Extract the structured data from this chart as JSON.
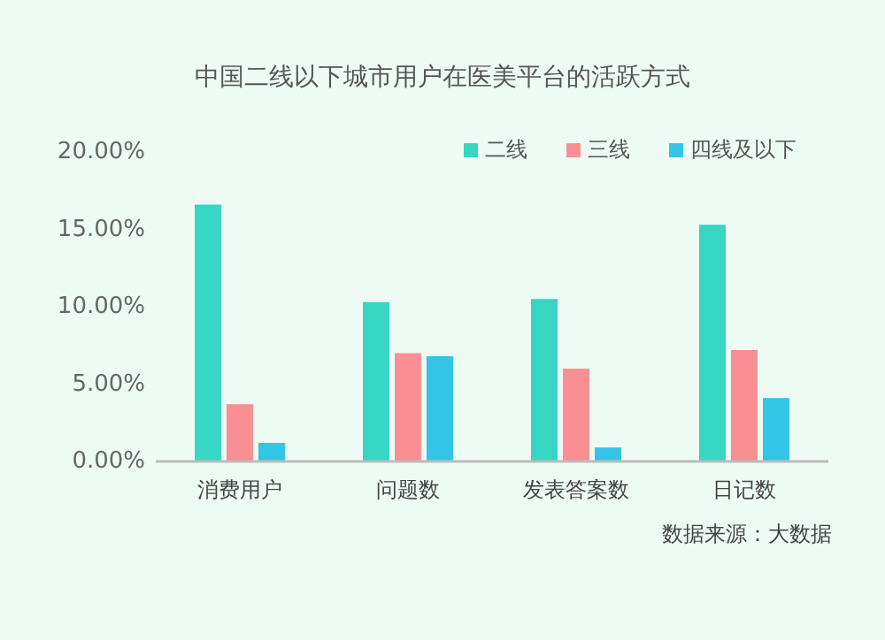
{
  "chart_data": {
    "type": "bar",
    "title": "中国二线以下城市用户在医美平台的活跃方式",
    "categories": [
      "消费用户",
      "问题数",
      "发表答案数",
      "日记数"
    ],
    "series": [
      {
        "name": "二线",
        "color": "#36d6c3",
        "values": [
          16.6,
          10.3,
          10.5,
          15.3
        ]
      },
      {
        "name": "三线",
        "color": "#f98f92",
        "values": [
          3.7,
          7.0,
          6.0,
          7.2
        ]
      },
      {
        "name": "四线及以下",
        "color": "#33c4e6",
        "values": [
          1.2,
          6.8,
          0.9,
          4.1
        ]
      }
    ],
    "ylim": [
      0,
      20
    ],
    "yticks": [
      {
        "value": 0,
        "label": "0.00%"
      },
      {
        "value": 5,
        "label": "5.00%"
      },
      {
        "value": 10,
        "label": "10.00%"
      },
      {
        "value": 15,
        "label": "15.00%"
      },
      {
        "value": 20,
        "label": "20.00%"
      }
    ],
    "grid": false,
    "legend": "top right",
    "annotations": [
      "数据来源：大数据"
    ]
  }
}
